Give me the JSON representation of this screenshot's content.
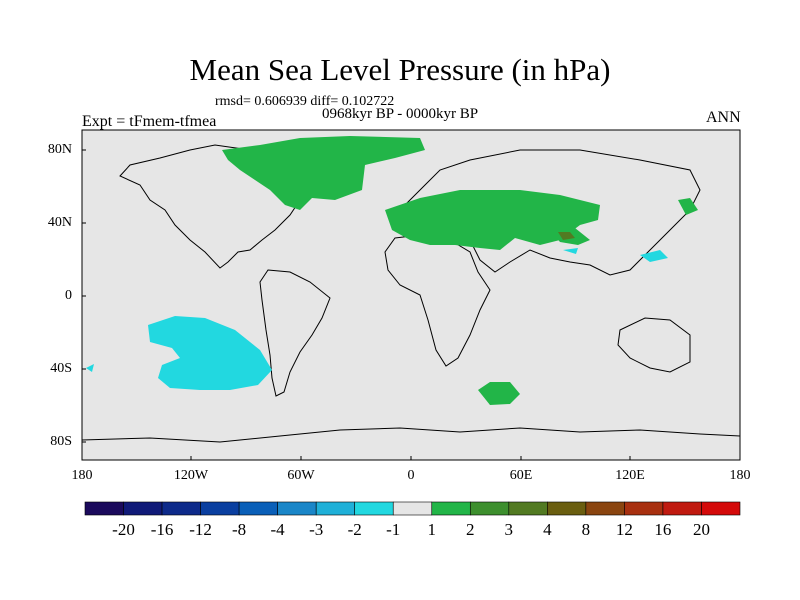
{
  "title": "Mean Sea Level Pressure (in hPa)",
  "stats_text": "rmsd= 0.606939  diff= 0.102722",
  "period_text": "0968kyr BP - 0000kyr BP",
  "experiment_text": "Expt = tFmem-tfmea",
  "season_text": "ANN",
  "lat_labels": [
    "80N",
    "40N",
    "0",
    "40S",
    "80S"
  ],
  "lon_labels": [
    "180",
    "120W",
    "60W",
    "0",
    "60E",
    "120E",
    "180"
  ],
  "colorbar": {
    "labels": [
      "-20",
      "-16",
      "-12",
      "-8",
      "-4",
      "-3",
      "-2",
      "-1",
      "1",
      "2",
      "3",
      "4",
      "8",
      "12",
      "16",
      "20"
    ],
    "colors": [
      "#1b0a5c",
      "#101a78",
      "#0d2a8a",
      "#0a3fa0",
      "#0a5fb8",
      "#1a86c8",
      "#1fb0d8",
      "#22d8e0",
      "#e6e6e6",
      "#22b548",
      "#3d8f2e",
      "#527a22",
      "#6a5e10",
      "#8a4510",
      "#a83010",
      "#c01a10",
      "#d40a0a"
    ]
  },
  "colors": {
    "ocean_bg": "#e6e6e6",
    "positive_fill": "#22b548",
    "negative_fill": "#22d8e0",
    "higher_fill": "#527a22"
  }
}
